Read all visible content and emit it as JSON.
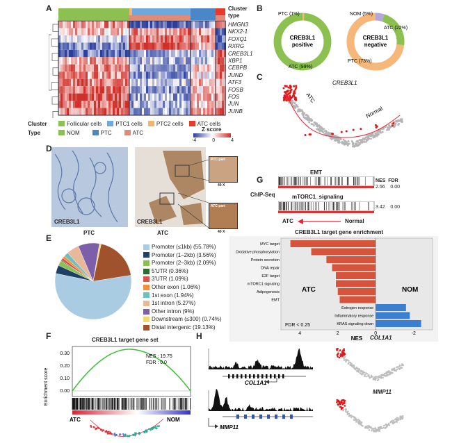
{
  "panels": {
    "A": "A",
    "B": "B",
    "C": "C",
    "D": "D",
    "E": "E",
    "F": "F",
    "G": "G",
    "H": "H"
  },
  "panelA": {
    "genes": [
      "HMGN3",
      "NKX2-1",
      "FOXQ1",
      "RXRG",
      "CREB3L1",
      "XBP1",
      "CEBPB",
      "JUND",
      "ATF3",
      "FOSB",
      "FOS",
      "JUN",
      "JUNB"
    ],
    "header_label_1": "Cluster",
    "header_label_2": "type",
    "legend_cluster_label": "Cluster",
    "legend_type_label": "Type",
    "cluster_items": [
      "Follicular cells",
      "PTC1 cells",
      "PTC2 cells",
      "ATC cells"
    ],
    "type_items": [
      "NOM",
      "PTC",
      "ATC"
    ],
    "zscore_label": "Z score",
    "zscore_ticks": [
      "-4",
      "0",
      "4"
    ],
    "colors": {
      "follicular": "#8cc152",
      "ptc1": "#6fa8dc",
      "ptc2": "#f2b56b",
      "atc_cluster": "#e83a2a",
      "nom": "#8cc152",
      "ptc": "#4a86c8",
      "atc_type": "#e08a7a"
    }
  },
  "panelB": {
    "left": {
      "center": [
        "CREB3L1",
        "positive"
      ],
      "labels": [
        "PTC (1%)",
        "ATC (99%)"
      ],
      "values": [
        1,
        99
      ],
      "colors": [
        "#f5b77a",
        "#8cc152"
      ]
    },
    "right": {
      "center": [
        "CREB3L1",
        "negative"
      ],
      "labels": [
        "NOM (5%)",
        "ATC (22%)",
        "PTC (73%)"
      ],
      "values": [
        5,
        22,
        73
      ],
      "colors": [
        "#b7a6d8",
        "#8cc152",
        "#f5b77a"
      ]
    }
  },
  "panelC": {
    "labels": [
      "CREB3L1",
      "ATC",
      "Normal"
    ]
  },
  "panelD": {
    "left_label": "CREB3L1",
    "left_caption": "PTC",
    "right_label": "CREB3L1",
    "right_caption": "ATC",
    "inset1": "PTC part",
    "inset1_mag": "40 X",
    "inset2": "ATC part",
    "inset2_mag": "40 X"
  },
  "panelE": {
    "legend": [
      "Promoter (≤1kb) (55.78%)",
      "Promoter (1–2kb) (3.56%)",
      "Promoter (2–3kb) (2.09%)",
      "5'UTR (0.36%)",
      "3'UTR (1.09%)",
      "Other exon (1.06%)",
      "1st exon (1.94%)",
      "1st intron (5.27%)",
      "Other intron (9%)",
      "Downstream (≤300) (0.74%)",
      "Distal intergenic (19.13%)"
    ],
    "values": [
      55.78,
      3.56,
      2.09,
      0.36,
      1.09,
      1.06,
      1.94,
      5.27,
      9,
      0.74,
      19.13
    ],
    "colors": [
      "#a9cce3",
      "#1f3f66",
      "#8cc152",
      "#2e6b2e",
      "#d9534f",
      "#f0903c",
      "#6fbfbf",
      "#e8b89a",
      "#7d5ea8",
      "#f5d76e",
      "#a0522d"
    ]
  },
  "panelF": {
    "title": "CREB3L1 target gene set",
    "stats": [
      "NES : 19.75",
      "FDR : 0.0"
    ],
    "ylabel": "Enrichment score",
    "yticks": [
      "0.30",
      "0.20",
      "0.10",
      "0.00"
    ],
    "left_label": "ATC",
    "right_label": "NOM"
  },
  "panelG": {
    "chipseq_label": "ChIP-Seq",
    "emt": {
      "title": "EMT",
      "nes_label": "NES",
      "fdr_label": "FDR",
      "nes": "2.56",
      "fdr": "0.00"
    },
    "mtorc": {
      "title": "mTORC1_signaling",
      "nes": "3.42",
      "fdr": "0.00"
    },
    "arrow_left": "ATC",
    "arrow_right": "Normal",
    "bar_title": "CREB3L1 target gene enrichment",
    "atc_label": "ATC",
    "nom_label": "NOM",
    "fdr_note": "FDR < 0.25",
    "xlabel": "NES",
    "xticks": [
      "4",
      "2",
      "0",
      "-2"
    ]
  },
  "chart_data": {
    "type": "bar",
    "title": "CREB3L1 target gene enrichment",
    "xlabel": "NES",
    "categories": [
      "MYC target",
      "Oxidative phosphorylation",
      "Protein secretion",
      "DNA repair",
      "E2F target",
      "mTORC1 signaling",
      "Adipogenesis",
      "EMT",
      "Estrogen response",
      "Inflammatory response",
      "KRAS signaling down"
    ],
    "values": [
      4.5,
      3.4,
      2.6,
      2.3,
      2.1,
      2.1,
      2.0,
      1.9,
      -1.6,
      -1.8,
      -2.4
    ],
    "xlim": [
      5,
      -3
    ],
    "colors": {
      "positive": "#d6543c",
      "negative": "#3a7fd0"
    }
  },
  "panelH": {
    "gene1": "COL1A1",
    "gene2": "MMP11",
    "umap1": "COL1A1",
    "umap2": "MMP11"
  }
}
